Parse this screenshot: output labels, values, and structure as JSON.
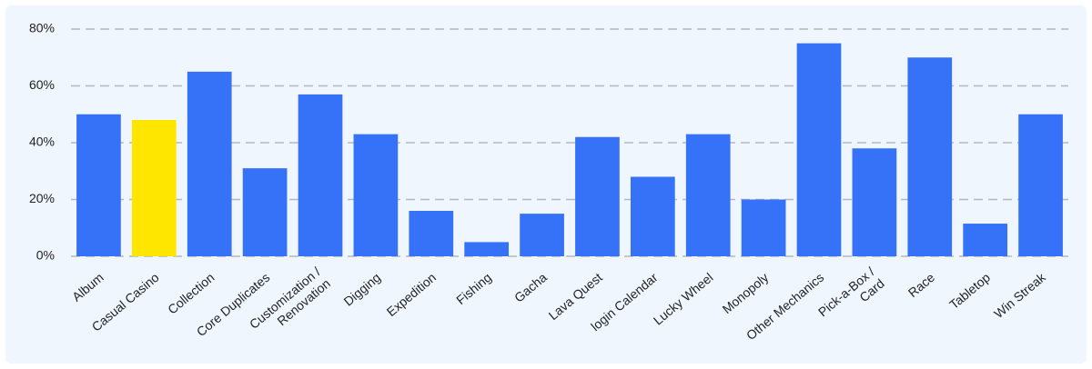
{
  "chart_data": {
    "type": "bar",
    "categories": [
      "Album",
      "Casual Casino",
      "Collection",
      "Core Duplicates",
      "Customization /\nRenovation",
      "Digging",
      "Expedition",
      "Fishing",
      "Gacha",
      "Lava Quest",
      "login Calendar",
      "Lucky Wheel",
      "Monopoly",
      "Other Mechanics",
      "Pick-a-Box /\nCard",
      "Race",
      "Tabletop",
      "Win Streak"
    ],
    "values": [
      50,
      48,
      65,
      31,
      57,
      43,
      16,
      5,
      15,
      42,
      28,
      43,
      20,
      75,
      38,
      70,
      11.5,
      50
    ],
    "colors": [
      "#3572f8",
      "#ffe600",
      "#3572f8",
      "#3572f8",
      "#3572f8",
      "#3572f8",
      "#3572f8",
      "#3572f8",
      "#3572f8",
      "#3572f8",
      "#3572f8",
      "#3572f8",
      "#3572f8",
      "#3572f8",
      "#3572f8",
      "#3572f8",
      "#3572f8",
      "#3572f8"
    ],
    "ylim": [
      0,
      80
    ],
    "yticks": [
      {
        "value": 0,
        "label": "0%"
      },
      {
        "value": 20,
        "label": "20%"
      },
      {
        "value": 40,
        "label": "40%"
      },
      {
        "value": 60,
        "label": "60%"
      },
      {
        "value": 80,
        "label": "80%"
      }
    ],
    "grid": true
  }
}
